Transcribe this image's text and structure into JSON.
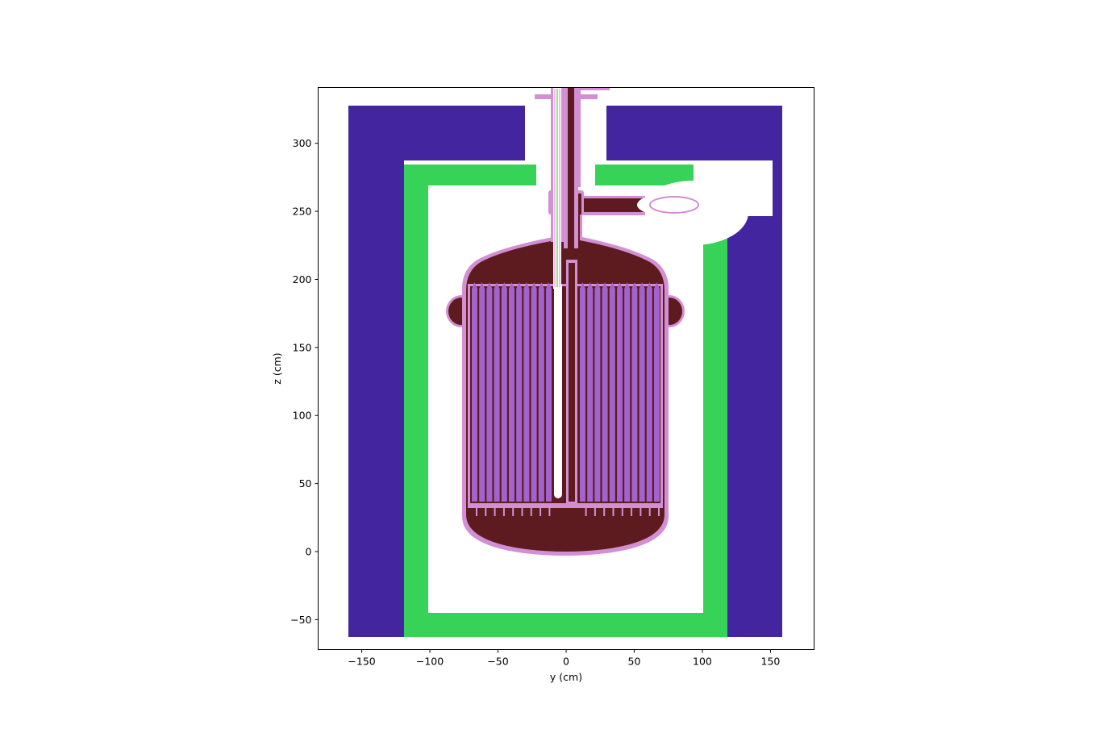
{
  "chart_data": {
    "type": "other",
    "xlabel": "y (cm)",
    "ylabel": "z (cm)",
    "xlim": [
      -182,
      182
    ],
    "ylim": [
      -72,
      341
    ],
    "xticks": [
      -150,
      -100,
      -50,
      0,
      50,
      100,
      150
    ],
    "yticks": [
      -50,
      0,
      50,
      100,
      150,
      200,
      250,
      300
    ],
    "xtick_labels": [
      "−150",
      "−100",
      "−50",
      "0",
      "50",
      "100",
      "150"
    ],
    "ytick_labels": [
      "−50",
      "0",
      "50",
      "100",
      "150",
      "200",
      "250",
      "300"
    ]
  },
  "colors": {
    "concrete_shield": "#42259f",
    "inner_shield": "#37d358",
    "coolant": "#5e1b1f",
    "vessel_wall": "#d28fd4",
    "fuel": "#a264cc",
    "cavity": "#ffffff"
  }
}
